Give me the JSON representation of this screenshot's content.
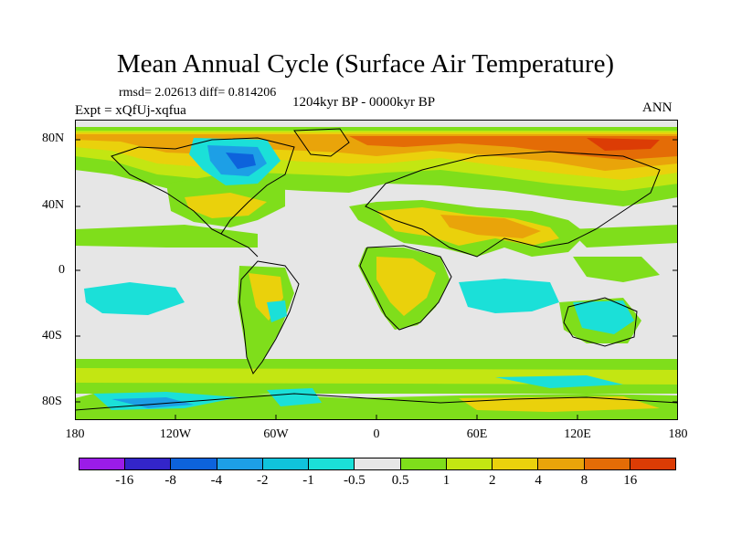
{
  "title": "Mean Annual Cycle (Surface Air Temperature)",
  "stats": "rmsd= 2.02613 diff= 0.814206",
  "experiment": "Expt = xQfUj-xqfua",
  "period": "1204kyr BP - 0000kyr BP",
  "season": "ANN",
  "map": {
    "x_ticks": [
      "180",
      "120W",
      "60W",
      "0",
      "60E",
      "120E",
      "180"
    ],
    "y_ticks": [
      "80N",
      "40N",
      "0",
      "40S",
      "80S"
    ],
    "base_color": "#e6e6e6",
    "coast_color": "#000000"
  },
  "colorbar": {
    "colors": [
      "#9b1ce8",
      "#3325c9",
      "#0d63dc",
      "#1d9fe6",
      "#10c3dc",
      "#1be0d8",
      "#e6e6e6",
      "#7fde1b",
      "#c3e612",
      "#ead10c",
      "#e9a40a",
      "#e46c06",
      "#dc3c05"
    ],
    "labels": [
      "-16",
      "-8",
      "-4",
      "-2",
      "-1",
      "-0.5",
      "0.5",
      "1",
      "2",
      "4",
      "8",
      "16"
    ]
  }
}
